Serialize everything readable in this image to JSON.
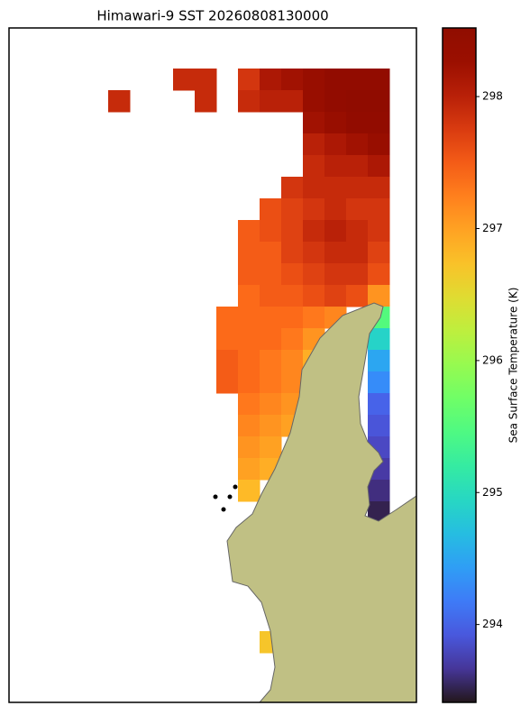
{
  "chart_data": {
    "type": "heatmap",
    "title": "Himawari-9 SST 20260808130000",
    "colorbar_label": "Sea Surface Temperature (K)",
    "colormap": "turbo",
    "clim": [
      293.41,
      298.52
    ],
    "cticks": [
      294,
      295,
      296,
      297,
      298
    ],
    "values": [
      [
        null,
        null,
        null,
        297.9,
        297.9,
        null,
        297.8,
        298.1,
        298.2,
        298.3,
        298.4,
        298.4,
        298.4
      ],
      [
        297.9,
        null,
        null,
        null,
        297.9,
        null,
        297.9,
        298.0,
        298.0,
        298.3,
        298.4,
        298.5,
        298.5
      ],
      [
        null,
        null,
        null,
        null,
        null,
        null,
        null,
        null,
        null,
        298.2,
        298.3,
        298.4,
        298.4
      ],
      [
        null,
        null,
        null,
        null,
        null,
        null,
        null,
        null,
        null,
        298.0,
        298.1,
        298.2,
        298.3
      ],
      [
        null,
        null,
        null,
        null,
        null,
        null,
        null,
        null,
        null,
        297.9,
        298.0,
        298.0,
        298.1
      ],
      [
        null,
        null,
        null,
        null,
        null,
        null,
        null,
        null,
        297.8,
        297.9,
        297.9,
        297.9,
        297.9
      ],
      [
        null,
        null,
        null,
        null,
        null,
        null,
        null,
        297.6,
        297.7,
        297.8,
        297.9,
        297.8,
        297.8
      ],
      [
        null,
        null,
        null,
        null,
        null,
        null,
        297.5,
        297.6,
        297.7,
        297.9,
        298.0,
        297.9,
        297.8
      ],
      [
        null,
        null,
        null,
        null,
        null,
        null,
        297.5,
        297.5,
        297.7,
        297.8,
        297.9,
        297.9,
        297.7
      ],
      [
        null,
        null,
        null,
        null,
        null,
        null,
        297.5,
        297.5,
        297.6,
        297.7,
        297.8,
        297.8,
        297.6
      ],
      [
        null,
        null,
        null,
        null,
        null,
        null,
        297.4,
        297.5,
        297.5,
        297.6,
        297.7,
        297.6,
        297.1
      ],
      [
        null,
        null,
        null,
        null,
        null,
        297.4,
        297.4,
        297.4,
        297.4,
        297.3,
        297.2,
        null,
        295.5
      ],
      [
        null,
        null,
        null,
        null,
        null,
        297.4,
        297.4,
        297.4,
        297.3,
        297.1,
        null,
        null,
        294.9
      ],
      [
        null,
        null,
        null,
        null,
        null,
        297.5,
        297.4,
        297.3,
        297.2,
        296.9,
        null,
        null,
        294.5
      ],
      [
        null,
        null,
        null,
        null,
        null,
        297.5,
        297.4,
        297.3,
        297.2,
        null,
        null,
        null,
        294.3
      ],
      [
        null,
        null,
        null,
        null,
        null,
        null,
        297.3,
        297.2,
        297.1,
        null,
        null,
        null,
        294.0
      ],
      [
        null,
        null,
        null,
        null,
        null,
        null,
        297.2,
        297.1,
        297.0,
        null,
        null,
        null,
        293.9
      ],
      [
        null,
        null,
        null,
        null,
        null,
        null,
        297.1,
        297.0,
        null,
        null,
        null,
        null,
        293.8
      ],
      [
        null,
        null,
        null,
        null,
        null,
        null,
        297.0,
        296.9,
        null,
        null,
        null,
        null,
        293.7
      ],
      [
        null,
        null,
        null,
        null,
        null,
        null,
        296.8,
        null,
        null,
        null,
        null,
        null,
        293.6
      ],
      [
        null,
        null,
        null,
        null,
        null,
        null,
        null,
        null,
        null,
        null,
        null,
        null,
        293.5
      ],
      [
        null,
        null,
        null,
        null,
        null,
        null,
        null,
        null,
        null,
        null,
        null,
        null,
        null
      ],
      [
        null,
        null,
        null,
        null,
        null,
        null,
        null,
        null,
        null,
        null,
        null,
        null,
        null
      ],
      [
        null,
        null,
        null,
        null,
        null,
        null,
        null,
        null,
        null,
        null,
        null,
        null,
        null
      ],
      [
        null,
        null,
        null,
        null,
        null,
        null,
        null,
        null,
        null,
        null,
        null,
        null,
        null
      ],
      [
        null,
        null,
        null,
        null,
        null,
        null,
        null,
        null,
        null,
        null,
        null,
        null,
        null
      ],
      [
        null,
        null,
        null,
        null,
        null,
        null,
        null,
        296.7,
        null,
        null,
        null,
        null,
        null
      ]
    ]
  }
}
